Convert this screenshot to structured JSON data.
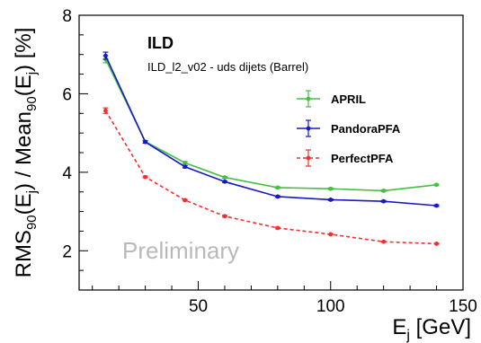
{
  "chart_data": {
    "type": "line",
    "title": "ILD",
    "subtitle": "ILD_l2_v02 - uds dijets (Barrel)",
    "watermark": "Preliminary",
    "xlabel": {
      "main": "E",
      "sub": "j",
      "suffix": " [GeV]"
    },
    "ylabel": {
      "p1": "RMS",
      "s1": "90",
      "p2": "(E",
      "s2": "j",
      "p3": ") / Mean",
      "s3": "90",
      "p4": "(E",
      "s4": "j",
      "p5": ") [%]"
    },
    "xlim": [
      5,
      150
    ],
    "ylim": [
      1,
      8
    ],
    "x_ticks": [
      50,
      100,
      150
    ],
    "y_ticks": [
      2,
      4,
      6,
      8
    ],
    "x": [
      15,
      30,
      45,
      60,
      80,
      100,
      120,
      140
    ],
    "series": [
      {
        "name": "APRIL",
        "color": "#45bf45",
        "dashed": false,
        "values": [
          6.88,
          4.78,
          4.24,
          3.87,
          3.61,
          3.58,
          3.53,
          3.68
        ],
        "errors": [
          0.09,
          0.03,
          0.03,
          0.02,
          0.02,
          0.02,
          0.02,
          0.02
        ]
      },
      {
        "name": "PandoraPFA",
        "color": "#1818c8",
        "dashed": false,
        "values": [
          6.97,
          4.77,
          4.14,
          3.76,
          3.38,
          3.3,
          3.26,
          3.15
        ],
        "errors": [
          0.09,
          0.03,
          0.03,
          0.02,
          0.02,
          0.02,
          0.02,
          0.02
        ]
      },
      {
        "name": "PerfectPFA",
        "color": "#f03030",
        "dashed": true,
        "values": [
          5.57,
          3.88,
          3.29,
          2.88,
          2.58,
          2.42,
          2.23,
          2.18
        ],
        "errors": [
          0.07,
          0.02,
          0.02,
          0.02,
          0.02,
          0.01,
          0.01,
          0.01
        ]
      }
    ],
    "legend_position": "top-right",
    "grid": false
  }
}
